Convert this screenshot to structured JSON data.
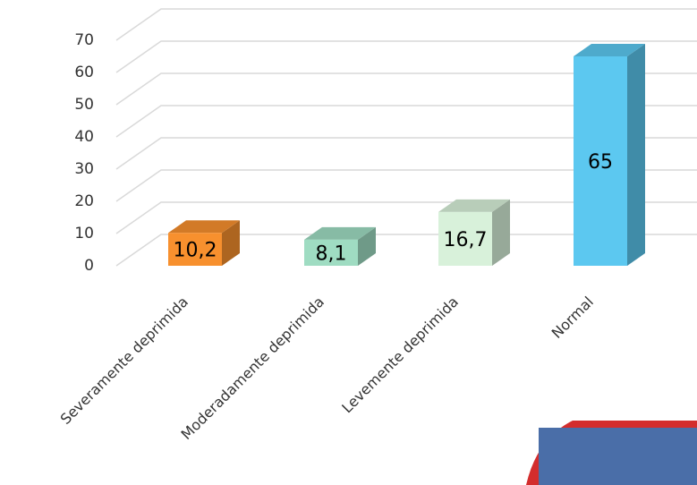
{
  "chart_data": {
    "type": "bar3d",
    "categories": [
      "Severamente deprimida",
      "Moderadamente deprimida",
      "Levemente deprimida",
      "Normal"
    ],
    "values": [
      10.2,
      8.1,
      16.7,
      65
    ],
    "value_labels": [
      "10,2",
      "8,1",
      "16,7",
      "65"
    ],
    "colors": [
      "#f7902e",
      "#9fdcc2",
      "#d8f1da",
      "#5cc8f0"
    ],
    "ylim": [
      0,
      70
    ],
    "yticks": [
      0,
      10,
      20,
      30,
      40,
      50,
      60,
      70
    ],
    "grid": true
  }
}
